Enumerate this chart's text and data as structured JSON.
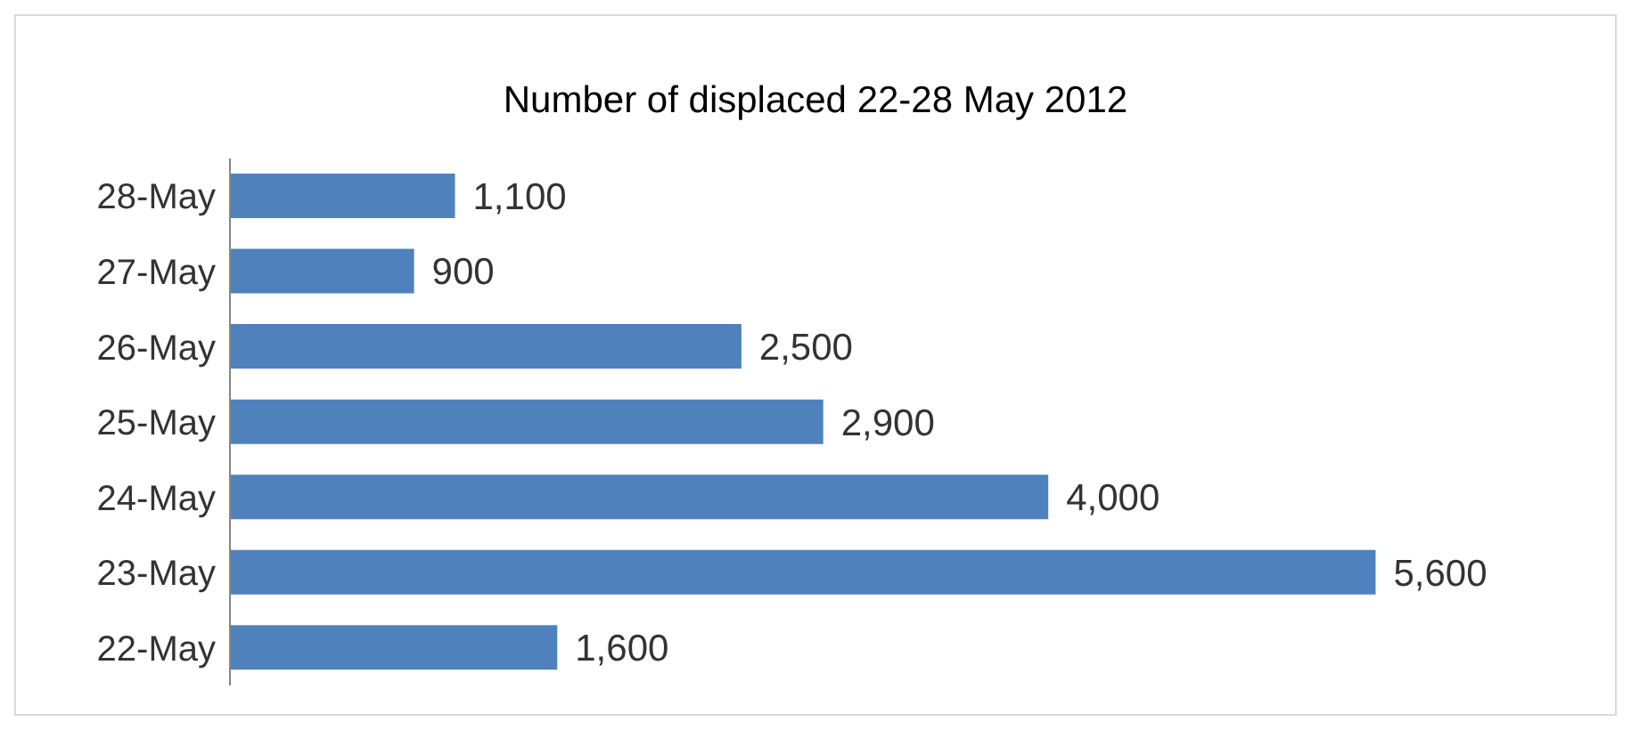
{
  "chart_data": {
    "type": "bar",
    "orientation": "horizontal",
    "title": "Number of displaced 22-28 May 2012",
    "categories": [
      "28-May",
      "27-May",
      "26-May",
      "25-May",
      "24-May",
      "23-May",
      "22-May"
    ],
    "values": [
      1100,
      900,
      2500,
      2900,
      4000,
      5600,
      1600
    ],
    "value_labels": [
      "1,100",
      "900",
      "2,500",
      "2,900",
      "4,000",
      "5,600",
      "1,600"
    ],
    "color": "#4f81bd",
    "tick_labels": "y"
  }
}
